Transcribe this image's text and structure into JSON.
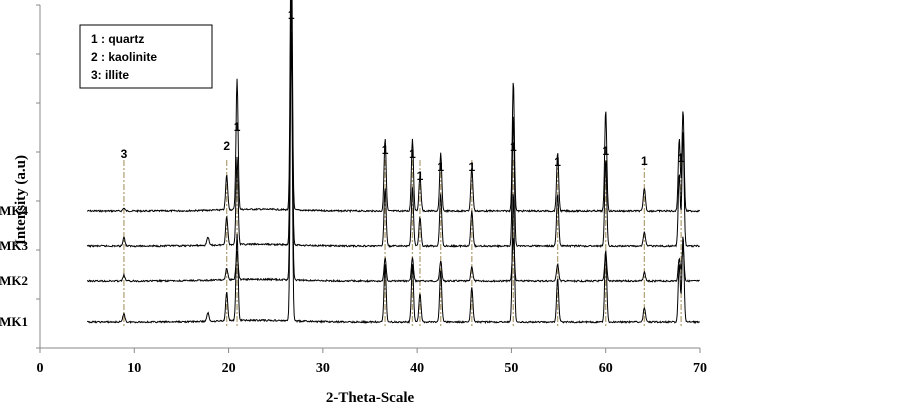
{
  "chart_data": {
    "type": "line",
    "xlabel": "2-Theta-Scale",
    "ylabel": "Intensity (a.u)",
    "xlim": [
      0,
      70
    ],
    "x_ticks": [
      "0",
      "10",
      "20",
      "30",
      "40",
      "50",
      "60",
      "70"
    ],
    "y_tick_labels": false,
    "grid": false,
    "legend_position": "top-left",
    "legend": [
      {
        "text": "1 : quartz"
      },
      {
        "text": "2 : kaolinite"
      },
      {
        "text": "3:  illite"
      }
    ],
    "series": [
      {
        "name": "MK4",
        "offset": 3,
        "peaks": [
          [
            8.9,
            0.01
          ],
          [
            19.8,
            0.12
          ],
          [
            20.9,
            0.45
          ],
          [
            26.65,
            1.0
          ],
          [
            36.6,
            0.25
          ],
          [
            39.5,
            0.25
          ],
          [
            40.3,
            0.12
          ],
          [
            42.5,
            0.2
          ],
          [
            45.8,
            0.15
          ],
          [
            50.2,
            0.45
          ],
          [
            54.9,
            0.2
          ],
          [
            60.0,
            0.35
          ],
          [
            64.1,
            0.08
          ],
          [
            67.8,
            0.25
          ],
          [
            68.2,
            0.35
          ]
        ]
      },
      {
        "name": "MK3",
        "offset": 2,
        "peaks": [
          [
            8.9,
            0.03
          ],
          [
            17.8,
            0.03
          ],
          [
            19.8,
            0.1
          ],
          [
            20.9,
            0.3
          ],
          [
            26.65,
            0.95
          ],
          [
            36.6,
            0.2
          ],
          [
            39.5,
            0.2
          ],
          [
            40.3,
            0.1
          ],
          [
            42.5,
            0.18
          ],
          [
            45.8,
            0.12
          ],
          [
            50.2,
            0.45
          ],
          [
            54.9,
            0.18
          ],
          [
            60.0,
            0.3
          ],
          [
            64.1,
            0.05
          ],
          [
            67.8,
            0.25
          ],
          [
            68.2,
            0.4
          ]
        ]
      },
      {
        "name": "MK2",
        "offset": 1,
        "peaks": [
          [
            8.9,
            0.02
          ],
          [
            19.8,
            0.04
          ],
          [
            20.9,
            0.1
          ],
          [
            26.65,
            1.0
          ],
          [
            36.6,
            0.08
          ],
          [
            39.5,
            0.08
          ],
          [
            42.5,
            0.07
          ],
          [
            45.8,
            0.05
          ],
          [
            50.2,
            0.15
          ],
          [
            54.9,
            0.06
          ],
          [
            60.0,
            0.1
          ],
          [
            64.1,
            0.03
          ],
          [
            67.8,
            0.08
          ],
          [
            68.2,
            0.12
          ]
        ]
      },
      {
        "name": "MK1",
        "offset": 0,
        "peaks": [
          [
            8.9,
            0.03
          ],
          [
            17.8,
            0.03
          ],
          [
            19.8,
            0.1
          ],
          [
            20.9,
            0.3
          ],
          [
            26.65,
            1.0
          ],
          [
            36.6,
            0.2
          ],
          [
            39.5,
            0.2
          ],
          [
            40.3,
            0.1
          ],
          [
            42.5,
            0.18
          ],
          [
            45.8,
            0.12
          ],
          [
            50.2,
            0.45
          ],
          [
            54.9,
            0.15
          ],
          [
            60.0,
            0.25
          ],
          [
            64.1,
            0.05
          ],
          [
            67.8,
            0.2
          ],
          [
            68.2,
            0.3
          ]
        ]
      }
    ],
    "annotations": [
      {
        "x": 8.9,
        "text": "3",
        "dashed": true
      },
      {
        "x": 19.8,
        "text": "2",
        "dashed": true
      },
      {
        "x": 20.9,
        "text": "1",
        "dashed": true
      },
      {
        "x": 26.65,
        "text": "1",
        "dashed": false
      },
      {
        "x": 36.6,
        "text": "1",
        "dashed": true
      },
      {
        "x": 39.5,
        "text": "1",
        "dashed": true
      },
      {
        "x": 40.3,
        "text": "1",
        "dashed": true
      },
      {
        "x": 42.5,
        "text": "1",
        "dashed": true
      },
      {
        "x": 45.8,
        "text": "1",
        "dashed": true
      },
      {
        "x": 50.2,
        "text": "1",
        "dashed": true
      },
      {
        "x": 54.9,
        "text": "1",
        "dashed": true
      },
      {
        "x": 60.0,
        "text": "1",
        "dashed": true
      },
      {
        "x": 64.1,
        "text": "1",
        "dashed": true
      },
      {
        "x": 68.0,
        "text": "1",
        "dashed": true
      }
    ],
    "colors": {
      "line": "#000000",
      "marker_line": "#b5a47c",
      "axis": "#888888"
    }
  }
}
